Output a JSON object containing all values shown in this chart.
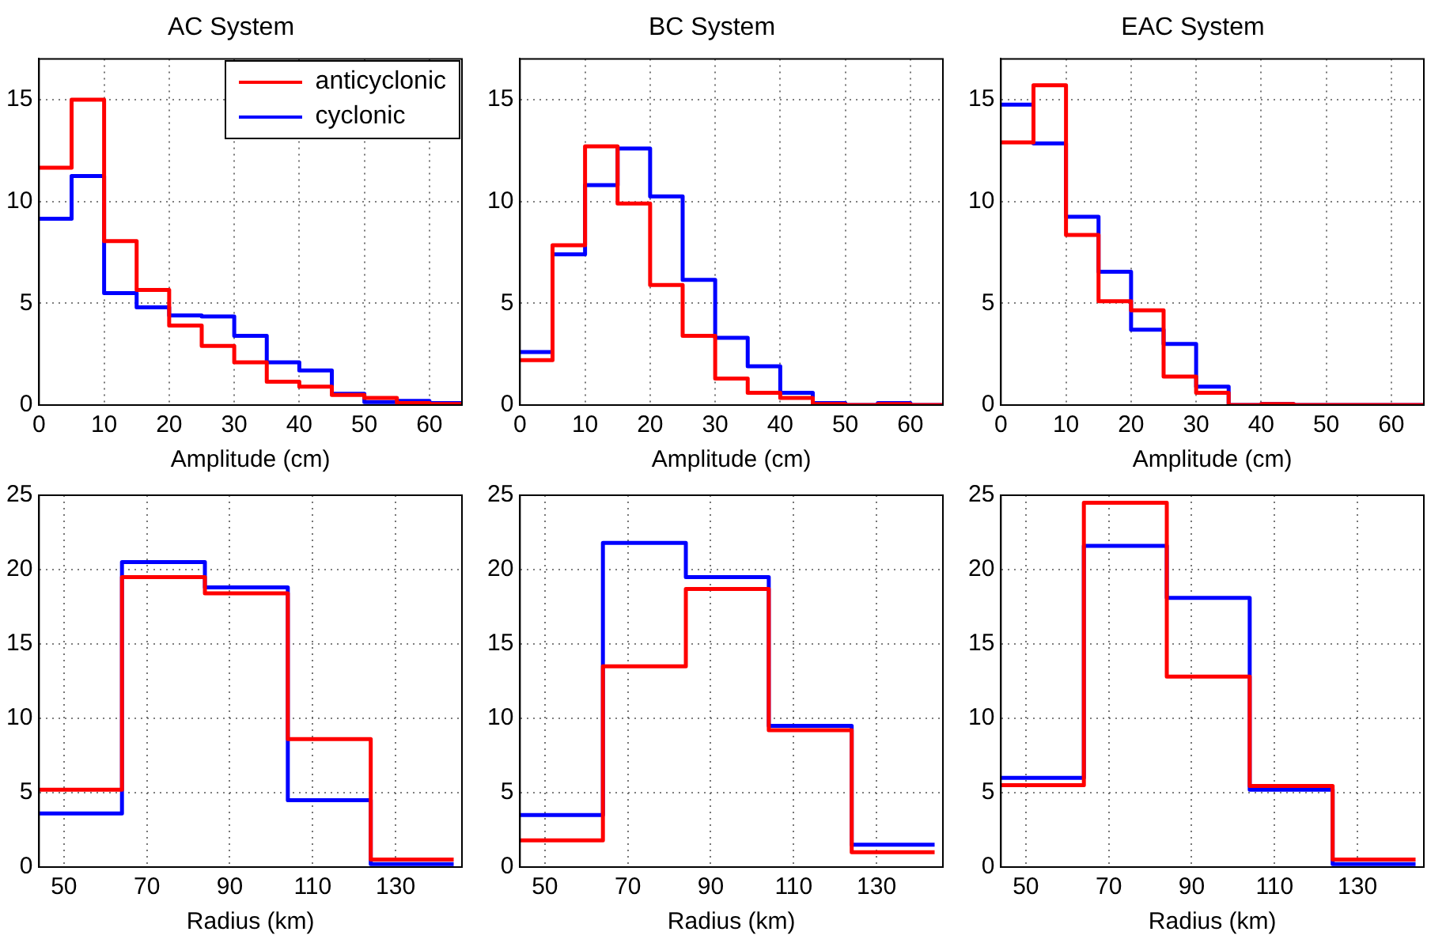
{
  "chart_data": [
    {
      "type": "histogram",
      "title": "AC System",
      "xlabel": "Amplitude (cm)",
      "bins": [
        0,
        5,
        10,
        15,
        20,
        25,
        30,
        35,
        40,
        45,
        50,
        55,
        60,
        65
      ],
      "xlim": [
        0,
        65
      ],
      "xticks": [
        0,
        10,
        20,
        30,
        40,
        50,
        60
      ],
      "ylim": [
        0,
        17
      ],
      "yticks": [
        0,
        5,
        10,
        15
      ],
      "grid": true,
      "legend": "top right",
      "series": [
        {
          "name": "anticyclonic",
          "color": "#ff0000",
          "values": [
            11.65,
            15.0,
            8.05,
            5.65,
            3.9,
            2.9,
            2.1,
            1.15,
            0.9,
            0.5,
            0.35,
            0.1,
            0.05
          ]
        },
        {
          "name": "cyclonic",
          "color": "#0000ff",
          "values": [
            9.15,
            11.25,
            5.5,
            4.8,
            4.4,
            4.35,
            3.4,
            2.1,
            1.7,
            0.55,
            0.15,
            0.2,
            0.1
          ]
        }
      ]
    },
    {
      "type": "histogram",
      "title": "BC System",
      "xlabel": "Amplitude (cm)",
      "bins": [
        0,
        5,
        10,
        15,
        20,
        25,
        30,
        35,
        40,
        45,
        50,
        55,
        60,
        65
      ],
      "xlim": [
        0,
        65
      ],
      "xticks": [
        0,
        10,
        20,
        30,
        40,
        50,
        60
      ],
      "ylim": [
        0,
        17
      ],
      "yticks": [
        0,
        5,
        10,
        15
      ],
      "grid": true,
      "series": [
        {
          "color": "#ff0000",
          "values": [
            2.2,
            7.85,
            12.7,
            9.9,
            5.9,
            3.4,
            1.3,
            0.6,
            0.35,
            0.05,
            0,
            0.05,
            0
          ]
        },
        {
          "color": "#0000ff",
          "values": [
            2.6,
            7.4,
            10.8,
            12.6,
            10.25,
            6.15,
            3.3,
            1.9,
            0.6,
            0.1,
            0,
            0.1,
            0
          ]
        }
      ]
    },
    {
      "type": "histogram",
      "title": "EAC System",
      "xlabel": "Amplitude (cm)",
      "bins": [
        0,
        5,
        10,
        15,
        20,
        25,
        30,
        35,
        40,
        45,
        50,
        55,
        60,
        65
      ],
      "xlim": [
        0,
        65
      ],
      "xticks": [
        0,
        10,
        20,
        30,
        40,
        50,
        60
      ],
      "ylim": [
        0,
        17
      ],
      "yticks": [
        0,
        5,
        10,
        15
      ],
      "grid": true,
      "series": [
        {
          "color": "#ff0000",
          "values": [
            12.9,
            15.7,
            8.35,
            5.1,
            4.65,
            1.4,
            0.6,
            0,
            0.05,
            0,
            0,
            0,
            0
          ]
        },
        {
          "color": "#0000ff",
          "values": [
            14.75,
            12.85,
            9.25,
            6.55,
            3.7,
            3.0,
            0.9,
            0,
            0.05,
            0,
            0,
            0,
            0
          ]
        }
      ]
    },
    {
      "type": "histogram",
      "xlabel": "Radius (km)",
      "bins": [
        44,
        64,
        84,
        104,
        124,
        144
      ],
      "xlim": [
        44,
        146
      ],
      "xticks": [
        50,
        70,
        90,
        110,
        130
      ],
      "ylim": [
        0,
        25
      ],
      "yticks": [
        0,
        5,
        10,
        15,
        20,
        25
      ],
      "grid": true,
      "series": [
        {
          "color": "#ff0000",
          "values": [
            5.2,
            19.5,
            18.4,
            8.6,
            0.5
          ]
        },
        {
          "color": "#0000ff",
          "values": [
            3.6,
            20.5,
            18.8,
            4.5,
            0.2
          ]
        }
      ]
    },
    {
      "type": "histogram",
      "xlabel": "Radius (km)",
      "bins": [
        44,
        64,
        84,
        104,
        124,
        144
      ],
      "xlim": [
        44,
        146
      ],
      "xticks": [
        50,
        70,
        90,
        110,
        130
      ],
      "ylim": [
        0,
        25
      ],
      "yticks": [
        0,
        5,
        10,
        15,
        20,
        25
      ],
      "grid": true,
      "series": [
        {
          "color": "#ff0000",
          "values": [
            1.8,
            13.5,
            18.7,
            9.2,
            1.0
          ]
        },
        {
          "color": "#0000ff",
          "values": [
            3.5,
            21.8,
            19.5,
            9.5,
            1.5
          ]
        }
      ]
    },
    {
      "type": "histogram",
      "xlabel": "Radius (km)",
      "bins": [
        44,
        64,
        84,
        104,
        124,
        144
      ],
      "xlim": [
        44,
        146
      ],
      "xticks": [
        50,
        70,
        90,
        110,
        130
      ],
      "ylim": [
        0,
        25
      ],
      "yticks": [
        0,
        5,
        10,
        15,
        20,
        25
      ],
      "grid": true,
      "series": [
        {
          "color": "#ff0000",
          "values": [
            5.5,
            24.5,
            12.8,
            5.45,
            0.5
          ]
        },
        {
          "color": "#0000ff",
          "values": [
            6.0,
            21.6,
            18.1,
            5.2,
            0.2
          ]
        }
      ]
    }
  ]
}
